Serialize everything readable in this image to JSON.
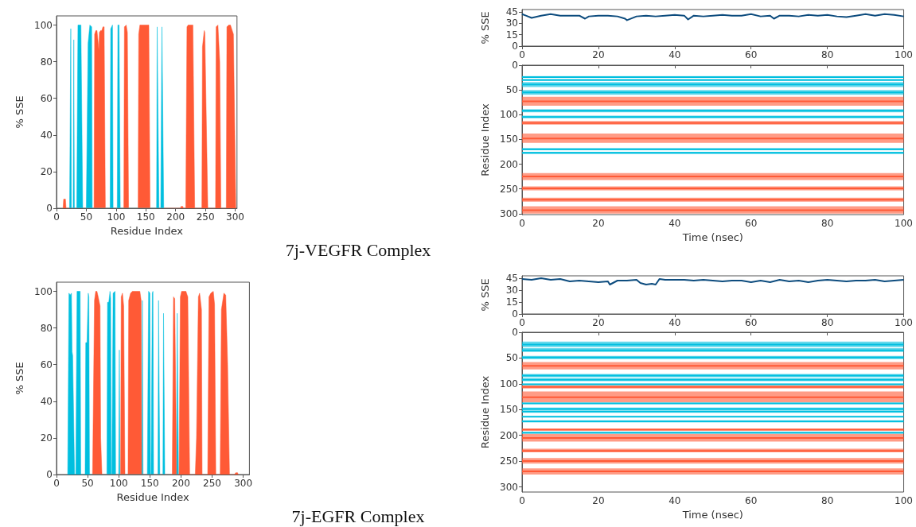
{
  "chart_data": [
    {
      "type": "area",
      "xlabel": "Residue Index",
      "ylabel": "% SSE",
      "xlim": [
        0,
        303
      ],
      "xticks": [
        0,
        50,
        100,
        150,
        200,
        250,
        300
      ],
      "ylim": [
        0,
        105
      ],
      "yticks": [
        0,
        20,
        40,
        60,
        80,
        100
      ],
      "marker": "none",
      "annotations": [
        "7j-VEGFR Complex"
      ],
      "series": [
        {
          "color": "#ff5a36",
          "x": [
            11,
            12,
            15,
            16,
            63,
            64,
            66,
            68,
            70,
            71,
            72,
            74,
            76,
            78,
            80,
            82,
            113,
            114,
            117,
            119,
            121,
            137,
            138,
            140,
            155,
            157,
            208,
            209,
            212,
            213,
            217,
            219,
            221,
            229,
            232,
            244,
            245,
            248,
            249,
            254,
            267,
            268,
            271,
            274,
            276,
            285,
            286,
            289,
            292,
            294,
            297,
            301
          ],
          "values": [
            0,
            5,
            5,
            0,
            0,
            95,
            97,
            97,
            90,
            86,
            96,
            97,
            97,
            99,
            99,
            0,
            0,
            99,
            100,
            96,
            0,
            0,
            95,
            100,
            100,
            0,
            0,
            1,
            1,
            0,
            0,
            99,
            100,
            100,
            0,
            0,
            88,
            97,
            96,
            0,
            0,
            99,
            100,
            80,
            0,
            0,
            99,
            100,
            100,
            98,
            95,
            0
          ]
        },
        {
          "color": "#00bfdf",
          "x": [
            22,
            24,
            25,
            28,
            29,
            30,
            34,
            36,
            41,
            44,
            50,
            53,
            56,
            59,
            60,
            90,
            91,
            94,
            95,
            102,
            103,
            105,
            107,
            168,
            169,
            172,
            175,
            177,
            180
          ],
          "values": [
            0,
            98,
            0,
            0,
            92,
            0,
            0,
            100,
            100,
            0,
            0,
            90,
            100,
            99,
            0,
            0,
            98,
            100,
            0,
            0,
            100,
            100,
            0,
            0,
            99,
            0,
            0,
            99,
            0
          ]
        }
      ]
    },
    {
      "type": "line",
      "ylabel": "% SSE",
      "xlim": [
        0,
        100
      ],
      "xticks": [
        0,
        20,
        40,
        60,
        80,
        100
      ],
      "ylim": [
        0,
        48
      ],
      "yticks": [
        0,
        15,
        30,
        45
      ],
      "marker": "none",
      "series": [
        {
          "color": "#0d4c7e",
          "x": [
            0,
            1,
            2.5,
            5,
            7.5,
            10,
            12.5,
            15,
            16.5,
            17.5,
            20,
            22.5,
            25,
            27,
            27.5,
            30,
            32.5,
            35,
            37.5,
            40,
            42.5,
            43.5,
            45,
            47.5,
            50,
            52.5,
            55,
            57.5,
            60,
            62.5,
            65,
            66,
            67.5,
            70,
            72.5,
            75,
            77.5,
            80,
            82.5,
            85,
            87.5,
            90,
            92.5,
            95,
            97.5,
            100
          ],
          "values": [
            42,
            40,
            37,
            40,
            42,
            40,
            40,
            40,
            36,
            39,
            40,
            40,
            39,
            36,
            34,
            39,
            40,
            39,
            40,
            41,
            40,
            35,
            40,
            39,
            40,
            41,
            40,
            40,
            42,
            39,
            40,
            36,
            40,
            40,
            39,
            41,
            40,
            41,
            39,
            38,
            40,
            42,
            40,
            42,
            41,
            39
          ]
        }
      ]
    },
    {
      "type": "line",
      "xlabel": "Time (nsec)",
      "ylabel": "Residue Index",
      "xlim": [
        0,
        100
      ],
      "xticks": [
        0,
        20,
        40,
        60,
        80,
        100
      ],
      "ylim": [
        302,
        0
      ],
      "yticks": [
        0,
        50,
        100,
        150,
        200,
        250,
        300
      ],
      "marker": "none",
      "series": [
        {
          "color": "#00bfdf",
          "x": [
            0,
            100
          ],
          "values": [
            24,
            24
          ],
          "lower": [
            22,
            22
          ],
          "upper": [
            25,
            25
          ]
        },
        {
          "color": "#00bfdf",
          "x": [
            0,
            100
          ],
          "values": [
            30,
            30
          ],
          "lower": [
            28,
            28
          ],
          "upper": [
            31,
            31
          ]
        },
        {
          "color": "#00bfdf",
          "x": [
            0,
            100
          ],
          "values": [
            39,
            39
          ],
          "lower": [
            34,
            34
          ],
          "upper": [
            44,
            44
          ]
        },
        {
          "color": "#00bfdf",
          "x": [
            0,
            100
          ],
          "values": [
            55,
            55
          ],
          "lower": [
            50,
            50
          ],
          "upper": [
            60,
            60
          ]
        },
        {
          "color": "#ff5a36",
          "x": [
            0,
            100
          ],
          "values": [
            73,
            73
          ],
          "lower": [
            64,
            64
          ],
          "upper": [
            82,
            82
          ]
        },
        {
          "color": "#00bfdf",
          "x": [
            0,
            100
          ],
          "values": [
            92,
            92
          ],
          "lower": [
            89,
            89
          ],
          "upper": [
            95,
            95
          ]
        },
        {
          "color": "#00bfdf",
          "x": [
            0,
            100
          ],
          "values": [
            105,
            105
          ],
          "lower": [
            102,
            102
          ],
          "upper": [
            107,
            107
          ]
        },
        {
          "color": "#ff5a36",
          "x": [
            0,
            100
          ],
          "values": [
            117,
            117
          ],
          "lower": [
            113,
            113
          ],
          "upper": [
            120,
            120
          ]
        },
        {
          "color": "#ff5a36",
          "x": [
            0,
            100
          ],
          "values": [
            148,
            148
          ],
          "lower": [
            138,
            138
          ],
          "upper": [
            157,
            157
          ]
        },
        {
          "color": "#00bfdf",
          "x": [
            0,
            100
          ],
          "values": [
            170,
            170
          ],
          "lower": [
            168,
            168
          ],
          "upper": [
            172,
            172
          ]
        },
        {
          "color": "#00bfdf",
          "x": [
            0,
            100
          ],
          "values": [
            177,
            177
          ],
          "lower": [
            175,
            175
          ],
          "upper": [
            179,
            179
          ]
        },
        {
          "color": "#ff5a36",
          "x": [
            0,
            100
          ],
          "values": [
            225,
            225
          ],
          "lower": [
            218,
            218
          ],
          "upper": [
            232,
            232
          ]
        },
        {
          "color": "#ff5a36",
          "x": [
            0,
            100
          ],
          "values": [
            249,
            249
          ],
          "lower": [
            245,
            245
          ],
          "upper": [
            253,
            253
          ]
        },
        {
          "color": "#ff5a36",
          "x": [
            0,
            100
          ],
          "values": [
            272,
            272
          ],
          "lower": [
            268,
            268
          ],
          "upper": [
            276,
            276
          ]
        },
        {
          "color": "#ff5a36",
          "x": [
            0,
            100
          ],
          "values": [
            293,
            293
          ],
          "lower": [
            285,
            285
          ],
          "upper": [
            300,
            300
          ]
        }
      ]
    },
    {
      "type": "area",
      "xlabel": "Residue Index",
      "ylabel": "% SSE",
      "xlim": [
        0,
        310
      ],
      "xticks": [
        0,
        50,
        100,
        150,
        200,
        250,
        300
      ],
      "ylim": [
        0,
        105
      ],
      "yticks": [
        0,
        20,
        40,
        60,
        80,
        100
      ],
      "marker": "none",
      "annotations": [
        "7j-EGFR Complex"
      ],
      "series": [
        {
          "color": "#00bfdf",
          "x": [
            18,
            20,
            22,
            24,
            25,
            26,
            29,
            31,
            33,
            38,
            39,
            46,
            47,
            49,
            51,
            52,
            53,
            81,
            82,
            84,
            86,
            87,
            88,
            89,
            91,
            94,
            95,
            100,
            101,
            102,
            137,
            138,
            139,
            146,
            148,
            150,
            151,
            152,
            154,
            155,
            156,
            163,
            164,
            166,
            171,
            172,
            174,
            193,
            194,
            196
          ],
          "values": [
            0,
            99,
            98,
            99,
            67,
            65,
            0,
            0,
            100,
            100,
            0,
            0,
            72,
            72,
            99,
            97,
            0,
            0,
            94,
            94,
            100,
            96,
            0,
            0,
            99,
            100,
            0,
            0,
            68,
            0,
            0,
            95,
            0,
            0,
            100,
            99,
            0,
            0,
            99,
            100,
            0,
            0,
            95,
            0,
            0,
            88,
            0,
            0,
            88,
            0
          ]
        },
        {
          "color": "#ff5a36",
          "x": [
            58,
            61,
            63,
            65,
            67,
            70,
            71,
            73,
            103,
            104,
            106,
            108,
            110,
            115,
            116,
            119,
            122,
            134,
            136,
            137,
            186,
            188,
            190,
            193,
            197,
            199,
            201,
            208,
            211,
            214,
            223,
            225,
            228,
            230,
            233,
            234,
            243,
            245,
            248,
            252,
            254,
            256,
            263,
            265,
            269,
            272,
            275,
            278,
            286,
            288,
            291,
            292
          ],
          "values": [
            0,
            95,
            100,
            100,
            97,
            92,
            20,
            0,
            0,
            97,
            99,
            92,
            0,
            0,
            95,
            99,
            100,
            100,
            95,
            0,
            0,
            97,
            96,
            0,
            0,
            97,
            100,
            100,
            97,
            0,
            0,
            20,
            97,
            99,
            90,
            0,
            0,
            97,
            99,
            100,
            93,
            0,
            0,
            90,
            99,
            98,
            60,
            0,
            0,
            1,
            1,
            0
          ]
        }
      ]
    },
    {
      "type": "line",
      "ylabel": "% SSE",
      "xlim": [
        0,
        100
      ],
      "xticks": [
        0,
        20,
        40,
        60,
        80,
        100
      ],
      "ylim": [
        0,
        48
      ],
      "yticks": [
        0,
        15,
        30,
        45
      ],
      "marker": "none",
      "series": [
        {
          "color": "#0d4c7e",
          "x": [
            0,
            2.5,
            5,
            7.5,
            10,
            12.5,
            15,
            17.5,
            20,
            22.5,
            23,
            25,
            27.5,
            30,
            31,
            32.5,
            34,
            35,
            36,
            37.5,
            40,
            42.5,
            45,
            47.5,
            50,
            52.5,
            55,
            57.5,
            60,
            62.5,
            65,
            67.5,
            70,
            72.5,
            75,
            77.5,
            80,
            82.5,
            85,
            87.5,
            90,
            92.5,
            95,
            97.5,
            100
          ],
          "values": [
            44,
            43,
            45,
            43,
            44,
            41,
            42,
            41,
            40,
            41,
            37,
            42,
            42,
            43,
            39,
            37,
            38,
            37,
            44,
            43,
            43,
            43,
            42,
            43,
            42,
            41,
            42,
            42,
            40,
            42,
            40,
            43,
            41,
            42,
            40,
            42,
            43,
            42,
            41,
            42,
            42,
            43,
            41,
            42,
            43
          ]
        }
      ]
    },
    {
      "type": "line",
      "xlabel": "Time (nsec)",
      "ylabel": "Residue Index",
      "xlim": [
        0,
        100
      ],
      "xticks": [
        0,
        20,
        40,
        60,
        80,
        100
      ],
      "ylim": [
        310,
        0
      ],
      "yticks": [
        0,
        50,
        100,
        150,
        200,
        250,
        300
      ],
      "marker": "none",
      "series": [
        {
          "color": "#00bfdf",
          "x": [
            0,
            100
          ],
          "values": [
            24,
            24
          ],
          "lower": [
            18,
            18
          ],
          "upper": [
            29,
            29
          ]
        },
        {
          "color": "#00bfdf",
          "x": [
            0,
            100
          ],
          "values": [
            35,
            35
          ],
          "lower": [
            31,
            31
          ],
          "upper": [
            38,
            38
          ]
        },
        {
          "color": "#00bfdf",
          "x": [
            0,
            100
          ],
          "values": [
            49,
            49
          ],
          "lower": [
            46,
            46
          ],
          "upper": [
            52,
            52
          ]
        },
        {
          "color": "#ff5a36",
          "x": [
            0,
            100
          ],
          "values": [
            65,
            65
          ],
          "lower": [
            58,
            58
          ],
          "upper": [
            72,
            72
          ]
        },
        {
          "color": "#00bfdf",
          "x": [
            0,
            100
          ],
          "values": [
            84,
            84
          ],
          "lower": [
            81,
            81
          ],
          "upper": [
            87,
            87
          ]
        },
        {
          "color": "#00bfdf",
          "x": [
            0,
            100
          ],
          "values": [
            92,
            92
          ],
          "lower": [
            89,
            89
          ],
          "upper": [
            95,
            95
          ]
        },
        {
          "color": "#00bfdf",
          "x": [
            0,
            100
          ],
          "values": [
            101,
            101
          ],
          "lower": [
            100,
            100
          ],
          "upper": [
            102,
            102
          ]
        },
        {
          "color": "#ff5a36",
          "x": [
            0,
            100
          ],
          "values": [
            106,
            106
          ],
          "lower": [
            103,
            103
          ],
          "upper": [
            109,
            109
          ]
        },
        {
          "color": "#ff5a36",
          "x": [
            0,
            100
          ],
          "values": [
            126,
            126
          ],
          "lower": [
            115,
            115
          ],
          "upper": [
            136,
            136
          ]
        },
        {
          "color": "#00bfdf",
          "x": [
            0,
            100
          ],
          "values": [
            138,
            138
          ],
          "lower": [
            137,
            137
          ],
          "upper": [
            139,
            139
          ]
        },
        {
          "color": "#00bfdf",
          "x": [
            0,
            100
          ],
          "values": [
            149,
            149
          ],
          "lower": [
            146,
            146
          ],
          "upper": [
            151,
            151
          ]
        },
        {
          "color": "#00bfdf",
          "x": [
            0,
            100
          ],
          "values": [
            154,
            154
          ],
          "lower": [
            152,
            152
          ],
          "upper": [
            156,
            156
          ]
        },
        {
          "color": "#00bfdf",
          "x": [
            0,
            100
          ],
          "values": [
            164,
            164
          ],
          "lower": [
            163,
            163
          ],
          "upper": [
            165,
            165
          ]
        },
        {
          "color": "#00bfdf",
          "x": [
            0,
            100
          ],
          "values": [
            173,
            173
          ],
          "lower": [
            171,
            171
          ],
          "upper": [
            174,
            174
          ]
        },
        {
          "color": "#ff5a36",
          "x": [
            0,
            100
          ],
          "values": [
            189,
            189
          ],
          "lower": [
            187,
            187
          ],
          "upper": [
            191,
            191
          ]
        },
        {
          "color": "#00bfdf",
          "x": [
            0,
            100
          ],
          "values": [
            195,
            195
          ],
          "lower": [
            193,
            193
          ],
          "upper": [
            196,
            196
          ]
        },
        {
          "color": "#ff5a36",
          "x": [
            0,
            100
          ],
          "values": [
            205,
            205
          ],
          "lower": [
            197,
            197
          ],
          "upper": [
            212,
            212
          ]
        },
        {
          "color": "#ff5a36",
          "x": [
            0,
            100
          ],
          "values": [
            230,
            230
          ],
          "lower": [
            226,
            226
          ],
          "upper": [
            233,
            233
          ]
        },
        {
          "color": "#ff5a36",
          "x": [
            0,
            100
          ],
          "values": [
            250,
            250
          ],
          "lower": [
            244,
            244
          ],
          "upper": [
            255,
            255
          ]
        },
        {
          "color": "#ff5a36",
          "x": [
            0,
            100
          ],
          "values": [
            270,
            270
          ],
          "lower": [
            264,
            264
          ],
          "upper": [
            276,
            276
          ]
        }
      ]
    }
  ]
}
